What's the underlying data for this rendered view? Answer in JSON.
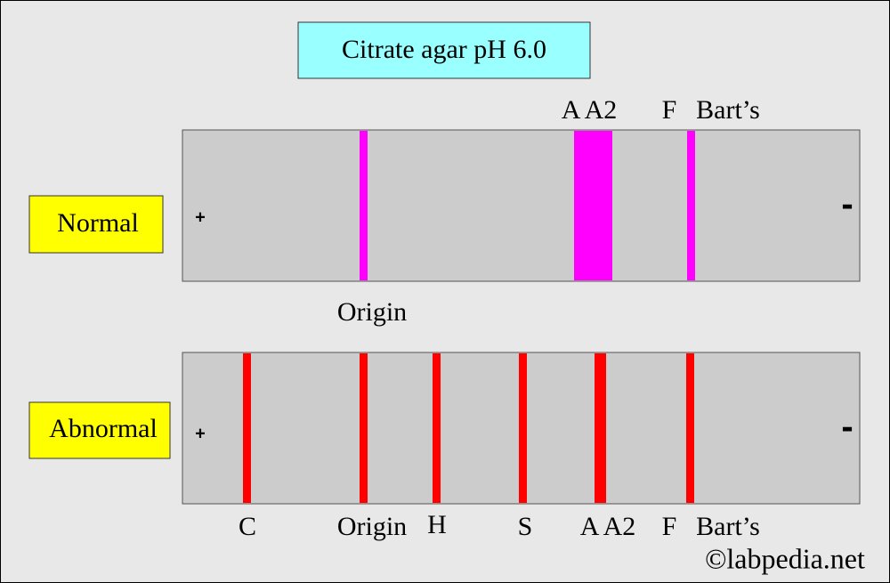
{
  "title": "Citrate agar pH 6.0",
  "normal": {
    "label": "Normal",
    "anode": "+",
    "cathode": "-",
    "top_labels": [
      "A A2",
      "F",
      "Bart’s"
    ],
    "bottom_labels": [
      "Origin"
    ]
  },
  "abnormal": {
    "label": "Abnormal",
    "anode": "+",
    "cathode": "-",
    "bottom_labels": [
      "C",
      "Origin",
      "H",
      "S",
      "A A2",
      "F",
      "Bart’s"
    ]
  },
  "watermark": "©labpedia.net"
}
